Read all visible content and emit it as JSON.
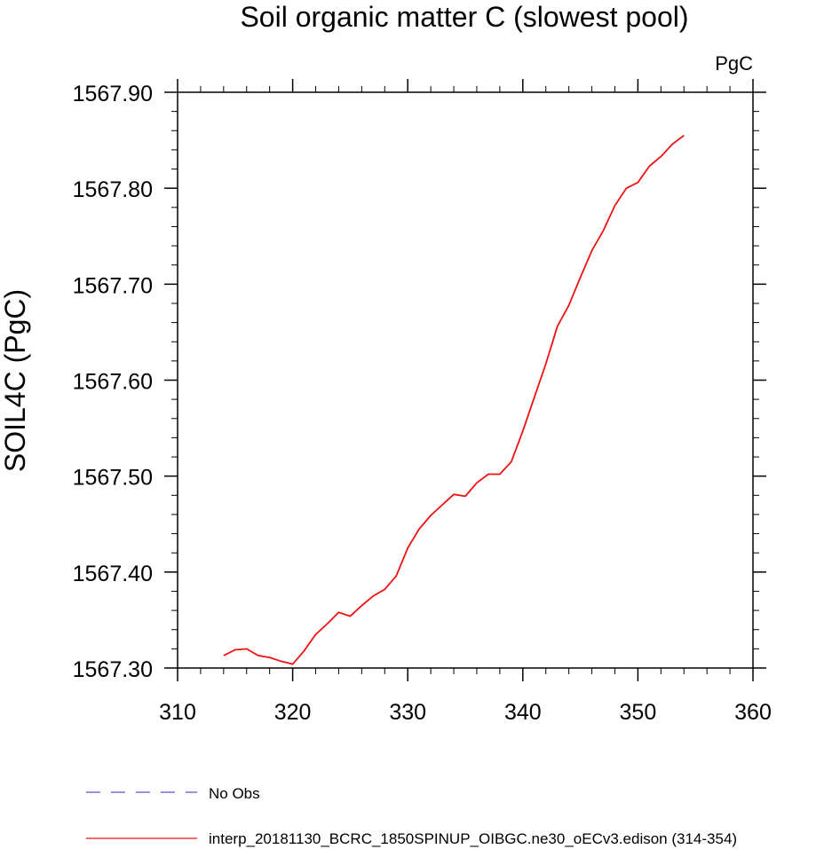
{
  "chart_data": {
    "type": "line",
    "title": "Soil organic matter C (slowest pool)",
    "units_label": "PgC",
    "ylabel": "SOIL4C  (PgC)",
    "xlabel": "",
    "xlim": [
      310,
      360
    ],
    "ylim": [
      1567.3,
      1567.9
    ],
    "xticks": [
      310,
      320,
      330,
      340,
      350,
      360
    ],
    "xtick_labels": [
      "310",
      "320",
      "330",
      "340",
      "350",
      "360"
    ],
    "yticks": [
      1567.3,
      1567.4,
      1567.5,
      1567.6,
      1567.7,
      1567.8,
      1567.9
    ],
    "ytick_labels": [
      "1567.30",
      "1567.40",
      "1567.50",
      "1567.60",
      "1567.70",
      "1567.80",
      "1567.90"
    ],
    "grid": false,
    "legend_position": "bottom-left",
    "series": [
      {
        "name": "No Obs",
        "color": "#5555cc",
        "dash": "dashed",
        "x": [],
        "y": []
      },
      {
        "name": "interp_20181130_BCRC_1850SPINUP_OIBGC.ne30_oECv3.edison (314-354)",
        "color": "#ee1111",
        "dash": "solid",
        "x": [
          314,
          315,
          316,
          317,
          318,
          319,
          320,
          321,
          322,
          323,
          324,
          325,
          326,
          327,
          328,
          329,
          330,
          331,
          332,
          333,
          334,
          335,
          336,
          337,
          338,
          339,
          340,
          341,
          342,
          343,
          344,
          345,
          346,
          347,
          348,
          349,
          350,
          351,
          352,
          353,
          354
        ],
        "y": [
          1567.313,
          1567.319,
          1567.32,
          1567.313,
          1567.311,
          1567.307,
          1567.304,
          1567.318,
          1567.335,
          1567.346,
          1567.358,
          1567.354,
          1567.365,
          1567.375,
          1567.382,
          1567.396,
          1567.425,
          1567.445,
          1567.459,
          1567.47,
          1567.481,
          1567.479,
          1567.493,
          1567.502,
          1567.502,
          1567.515,
          1567.547,
          1567.582,
          1567.617,
          1567.656,
          1567.678,
          1567.707,
          1567.735,
          1567.756,
          1567.782,
          1567.8,
          1567.806,
          1567.823,
          1567.833,
          1567.846,
          1567.855
        ]
      }
    ]
  }
}
